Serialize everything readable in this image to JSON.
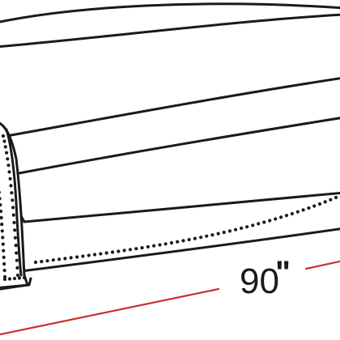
{
  "diagram": {
    "subject": "sofa-line-drawing",
    "dimension": {
      "value": "90",
      "unit": "\""
    },
    "colors": {
      "outline": "#1a1a1a",
      "dimension_line": "#c8312f",
      "background": "#ffffff"
    }
  }
}
